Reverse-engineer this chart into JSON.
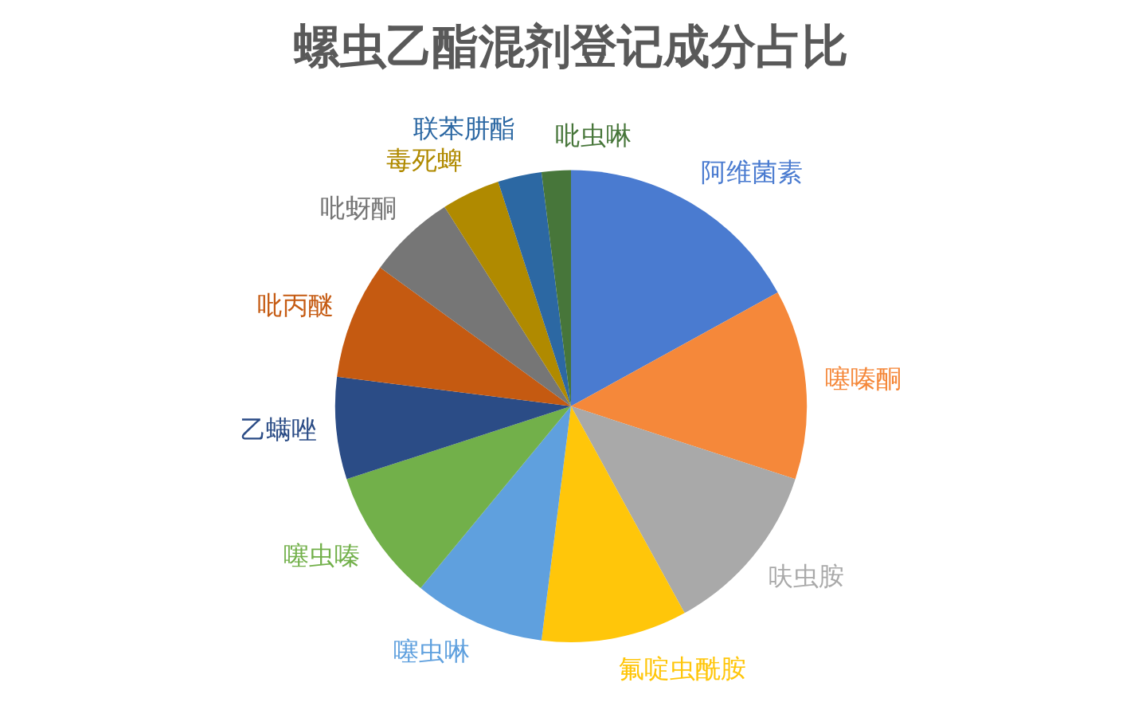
{
  "chart_data": {
    "type": "pie",
    "title": "螺虫乙酯混剂登记成分占比",
    "categories": [
      "阿维菌素",
      "噻嗪酮",
      "呋虫胺",
      "氟啶虫酰胺",
      "噻虫啉",
      "噻虫嗪",
      "乙螨唑",
      "吡丙醚",
      "吡蚜酮",
      "毒死蜱",
      "联苯肼酯",
      "吡虫啉"
    ],
    "values": [
      17,
      13,
      12,
      10,
      9,
      9,
      7,
      8,
      6,
      4,
      3,
      2
    ],
    "colors": [
      "#4a7bd0",
      "#f5883a",
      "#a9a9a9",
      "#ffc60a",
      "#5fa0de",
      "#72b04a",
      "#2b4c86",
      "#c55a11",
      "#767676",
      "#b08a00",
      "#2c68a3",
      "#47763a"
    ]
  }
}
